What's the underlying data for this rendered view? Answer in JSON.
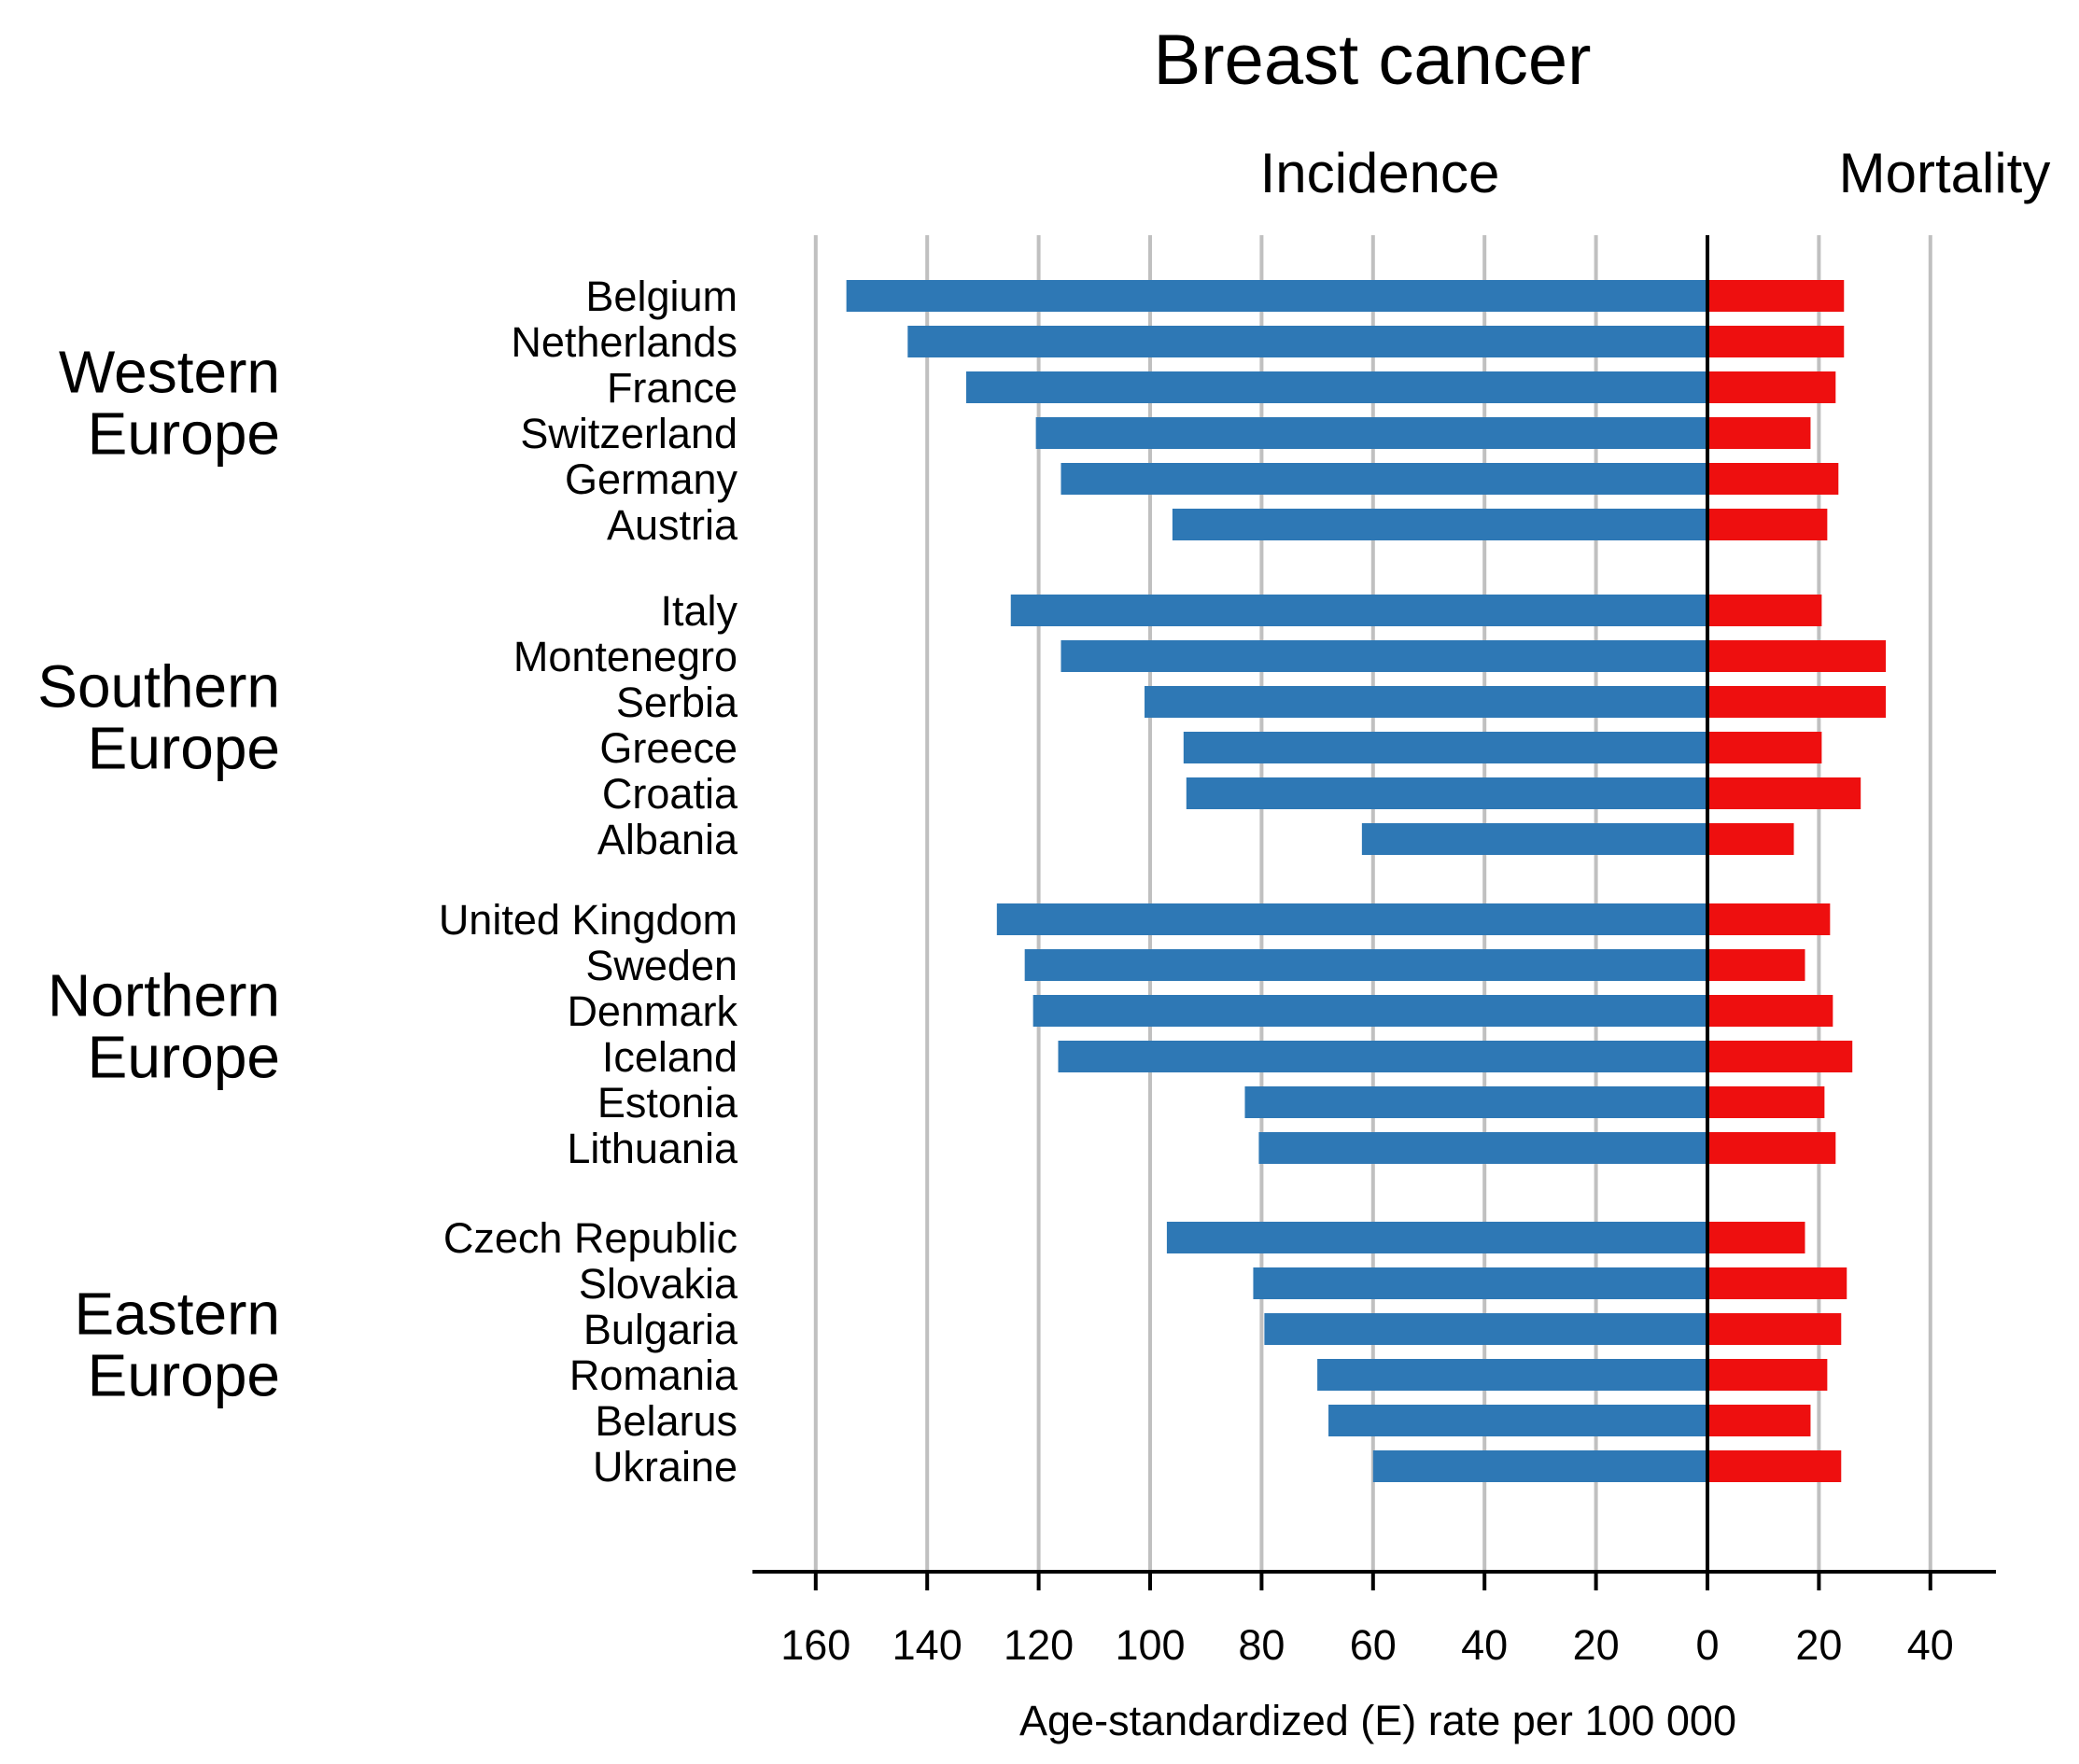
{
  "chart_data": {
    "type": "bar",
    "title": "Breast cancer",
    "panels": {
      "left": "Incidence",
      "right": "Mortality"
    },
    "xlabel": "Age-standardized (E) rate per 100 000",
    "xlim": {
      "incidence": [
        0,
        170
      ],
      "mortality": [
        0,
        51
      ]
    },
    "grid": true,
    "colors": {
      "incidence": "#2e78b5",
      "mortality": "#ee0f0f"
    },
    "ticks": {
      "incidence": [
        160,
        140,
        120,
        100,
        80,
        60,
        40,
        20,
        0
      ],
      "mortality": [
        20,
        40
      ]
    },
    "series": [
      {
        "name": "Incidence",
        "color": "#2e78b5"
      },
      {
        "name": "Mortality",
        "color": "#ee0f0f"
      }
    ],
    "groups": [
      {
        "region": "Western Europe",
        "region_lines": [
          "Western",
          "Europe"
        ],
        "countries": [
          {
            "name": "Belgium",
            "incidence": 154.5,
            "mortality": 24.5
          },
          {
            "name": "Netherlands",
            "incidence": 143.5,
            "mortality": 24.5
          },
          {
            "name": "France",
            "incidence": 133,
            "mortality": 23
          },
          {
            "name": "Switzerland",
            "incidence": 120.5,
            "mortality": 18.5
          },
          {
            "name": "Germany",
            "incidence": 116,
            "mortality": 23.5
          },
          {
            "name": "Austria",
            "incidence": 96,
            "mortality": 21.5
          }
        ]
      },
      {
        "region": "Southern Europe",
        "region_lines": [
          "Southern",
          "Europe"
        ],
        "countries": [
          {
            "name": "Italy",
            "incidence": 125,
            "mortality": 20.5
          },
          {
            "name": "Montenegro",
            "incidence": 116,
            "mortality": 32
          },
          {
            "name": "Serbia",
            "incidence": 101,
            "mortality": 32
          },
          {
            "name": "Greece",
            "incidence": 94,
            "mortality": 20.5
          },
          {
            "name": "Croatia",
            "incidence": 93.5,
            "mortality": 27.5
          },
          {
            "name": "Albania",
            "incidence": 62,
            "mortality": 15.5
          }
        ]
      },
      {
        "region": "Northern Europe",
        "region_lines": [
          "Northern",
          "Europe"
        ],
        "countries": [
          {
            "name": "United Kingdom",
            "incidence": 127.5,
            "mortality": 22
          },
          {
            "name": "Sweden",
            "incidence": 122.5,
            "mortality": 17.5
          },
          {
            "name": "Denmark",
            "incidence": 121,
            "mortality": 22.5
          },
          {
            "name": "Iceland",
            "incidence": 116.5,
            "mortality": 26
          },
          {
            "name": "Estonia",
            "incidence": 83,
            "mortality": 21
          },
          {
            "name": "Lithuania",
            "incidence": 80.5,
            "mortality": 23
          }
        ]
      },
      {
        "region": "Eastern Europe",
        "region_lines": [
          "Eastern",
          "Europe"
        ],
        "countries": [
          {
            "name": "Czech Republic",
            "incidence": 97,
            "mortality": 17.5
          },
          {
            "name": "Slovakia",
            "incidence": 81.5,
            "mortality": 25
          },
          {
            "name": "Bulgaria",
            "incidence": 79.5,
            "mortality": 24
          },
          {
            "name": "Romania",
            "incidence": 70,
            "mortality": 21.5
          },
          {
            "name": "Belarus",
            "incidence": 68,
            "mortality": 18.5
          },
          {
            "name": "Ukraine",
            "incidence": 60,
            "mortality": 24
          }
        ]
      }
    ]
  }
}
